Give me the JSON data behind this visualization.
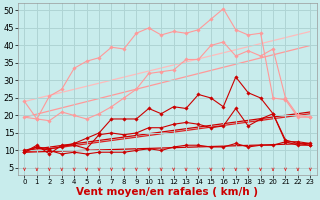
{
  "background_color": "#c8ecec",
  "grid_color": "#afd4d4",
  "xlabel": "Vent moyen/en rafales ( km/h )",
  "xlabel_fontsize": 7.5,
  "tick_fontsize": 6,
  "xlim": [
    -0.5,
    23.5
  ],
  "ylim": [
    3,
    52
  ],
  "yticks": [
    5,
    10,
    15,
    20,
    25,
    30,
    35,
    40,
    45,
    50
  ],
  "xticks": [
    0,
    1,
    2,
    3,
    4,
    5,
    6,
    7,
    8,
    9,
    10,
    11,
    12,
    13,
    14,
    15,
    16,
    17,
    18,
    19,
    20,
    21,
    22,
    23
  ],
  "series": [
    {
      "x": [
        0,
        1,
        2,
        3,
        4,
        5,
        6,
        7,
        8,
        9,
        10,
        11,
        12,
        13,
        14,
        15,
        16,
        17,
        18,
        19,
        20,
        21,
        22,
        23
      ],
      "y": [
        9.5,
        11.0,
        10.0,
        9.0,
        9.5,
        9.0,
        9.5,
        9.5,
        9.5,
        10.0,
        10.5,
        10.0,
        11.0,
        11.5,
        11.5,
        11.0,
        11.0,
        12.0,
        11.0,
        11.5,
        11.5,
        12.5,
        11.5,
        11.5
      ],
      "color": "#cc0000",
      "linewidth": 0.8,
      "marker": "D",
      "markersize": 1.8,
      "linestyle": "-"
    },
    {
      "x": [
        0,
        1,
        2,
        3,
        4,
        5,
        6,
        7,
        8,
        9,
        10,
        11,
        12,
        13,
        14,
        15,
        16,
        17,
        18,
        19,
        20,
        21,
        22,
        23
      ],
      "y": [
        9.5,
        11.5,
        9.0,
        11.5,
        11.5,
        10.5,
        14.5,
        15.0,
        14.5,
        15.0,
        16.5,
        16.5,
        17.5,
        18.0,
        17.5,
        16.5,
        17.0,
        22.0,
        17.0,
        19.0,
        20.5,
        12.5,
        12.5,
        12.0
      ],
      "color": "#cc0000",
      "linewidth": 0.8,
      "marker": "D",
      "markersize": 1.8,
      "linestyle": "-"
    },
    {
      "x": [
        0,
        1,
        2,
        3,
        4,
        5,
        6,
        7,
        8,
        9,
        10,
        11,
        12,
        13,
        14,
        15,
        16,
        17,
        18,
        19,
        20,
        21,
        22,
        23
      ],
      "y": [
        10.0,
        11.0,
        10.5,
        11.0,
        12.0,
        13.5,
        15.0,
        19.0,
        19.0,
        19.0,
        22.0,
        20.5,
        22.5,
        22.0,
        26.0,
        25.0,
        22.5,
        31.0,
        26.5,
        25.0,
        20.5,
        13.0,
        12.0,
        11.5
      ],
      "color": "#cc0000",
      "linewidth": 0.8,
      "marker": "D",
      "markersize": 1.8,
      "linestyle": "-"
    },
    {
      "x": [
        0,
        1,
        2,
        3,
        4,
        5,
        6,
        7,
        8,
        9,
        10,
        11,
        12,
        13,
        14,
        15,
        16,
        17,
        18,
        19,
        20,
        21,
        22,
        23
      ],
      "y": [
        19.5,
        19.0,
        18.5,
        21.0,
        20.0,
        19.0,
        20.5,
        22.5,
        25.0,
        27.5,
        32.0,
        32.5,
        33.0,
        36.0,
        36.0,
        40.0,
        41.0,
        37.0,
        38.5,
        37.0,
        39.0,
        25.0,
        20.0,
        19.5
      ],
      "color": "#ff9999",
      "linewidth": 0.8,
      "marker": "D",
      "markersize": 1.8,
      "linestyle": "-"
    },
    {
      "x": [
        0,
        1,
        2,
        3,
        4,
        5,
        6,
        7,
        8,
        9,
        10,
        11,
        12,
        13,
        14,
        15,
        16,
        17,
        18,
        19,
        20,
        21,
        22,
        23
      ],
      "y": [
        24.0,
        19.0,
        25.5,
        27.5,
        33.5,
        35.5,
        36.5,
        39.5,
        39.0,
        43.5,
        45.0,
        43.0,
        44.0,
        43.5,
        44.5,
        47.5,
        50.5,
        44.5,
        43.0,
        43.5,
        25.0,
        24.5,
        19.5,
        19.5
      ],
      "color": "#ff9999",
      "linewidth": 0.8,
      "marker": "D",
      "markersize": 1.8,
      "linestyle": "-"
    },
    {
      "x": [
        0,
        23
      ],
      "y": [
        9.5,
        12.0
      ],
      "color": "#cc0000",
      "linewidth": 0.9,
      "marker": null,
      "linestyle": "-"
    },
    {
      "x": [
        0,
        23
      ],
      "y": [
        9.5,
        20.5
      ],
      "color": "#dd2222",
      "linewidth": 0.9,
      "marker": null,
      "linestyle": "-"
    },
    {
      "x": [
        0,
        23
      ],
      "y": [
        10.0,
        21.0
      ],
      "color": "#cc0000",
      "linewidth": 0.9,
      "marker": null,
      "linestyle": "-"
    },
    {
      "x": [
        0,
        23
      ],
      "y": [
        19.5,
        40.0
      ],
      "color": "#ff9999",
      "linewidth": 0.9,
      "marker": null,
      "linestyle": "-"
    },
    {
      "x": [
        0,
        23
      ],
      "y": [
        24.0,
        44.0
      ],
      "color": "#ffbbbb",
      "linewidth": 0.9,
      "marker": null,
      "linestyle": "-"
    }
  ],
  "wind_symbol_y": 4.8,
  "wind_symbol_color": "#dd3333",
  "wind_x": [
    0,
    1,
    2,
    3,
    4,
    5,
    6,
    7,
    8,
    9,
    10,
    11,
    12,
    13,
    14,
    15,
    16,
    17,
    18,
    19,
    20,
    21,
    22,
    23
  ]
}
